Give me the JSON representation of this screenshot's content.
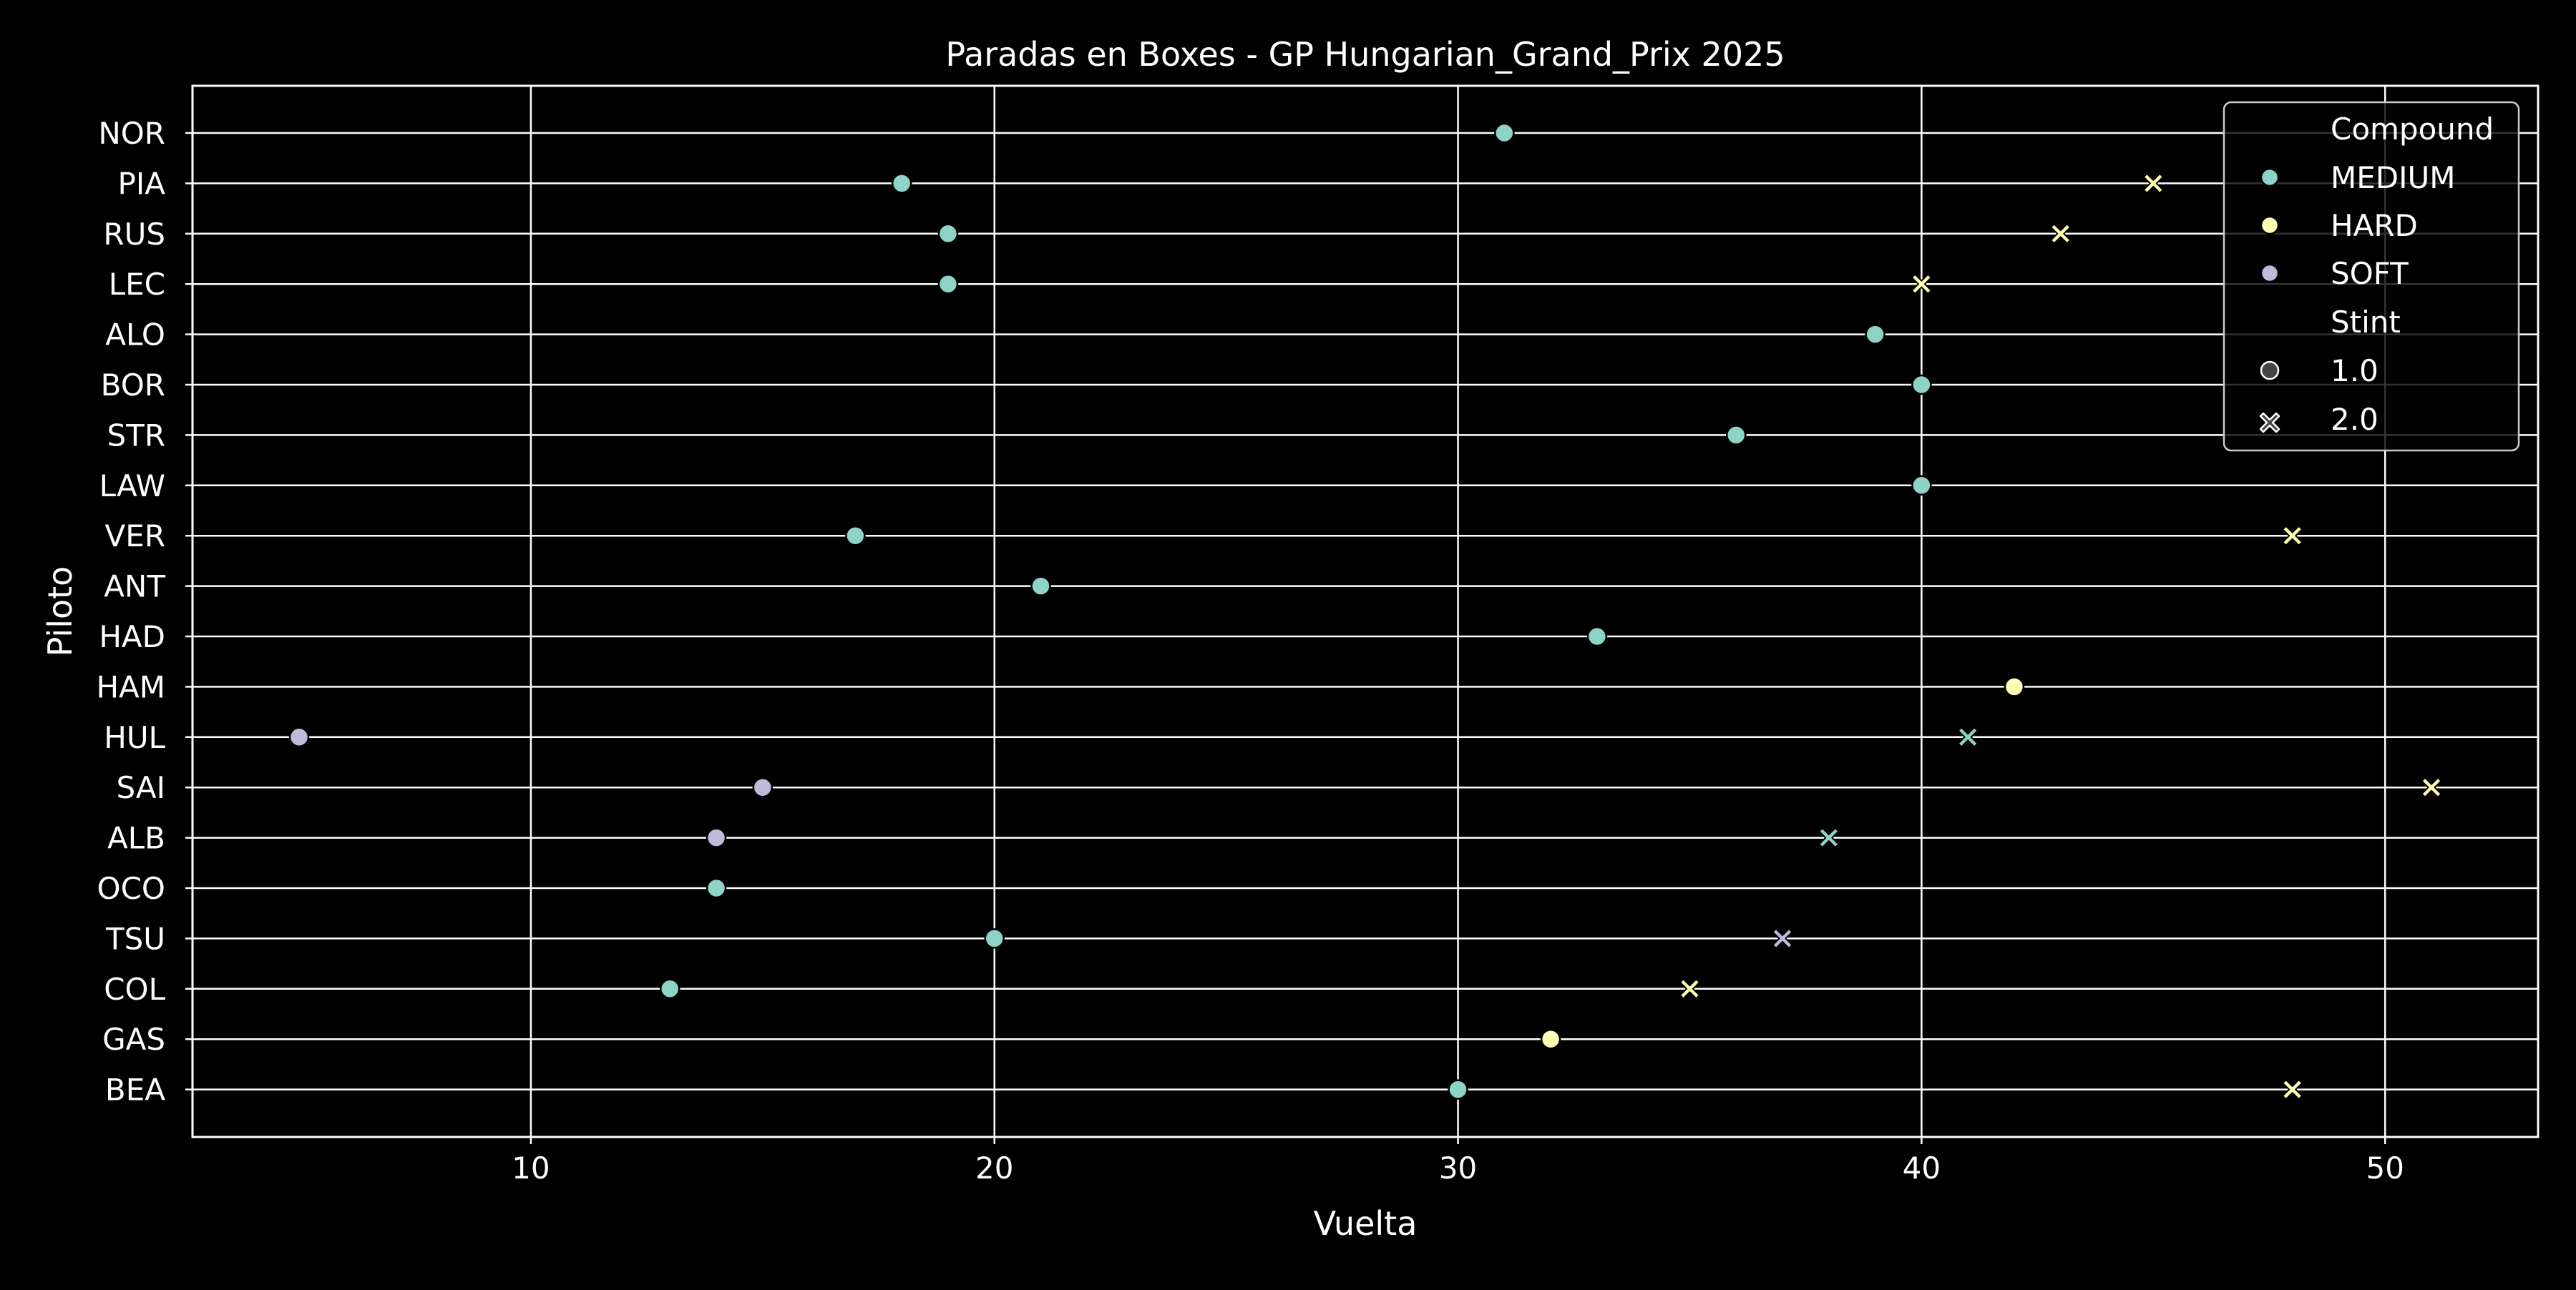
{
  "chart_data": {
    "type": "scatter",
    "title": "Paradas en Boxes - GP Hungarian_Grand_Prix 2025",
    "xlabel": "Vuelta",
    "ylabel": "Piloto",
    "xlim": [
      2.7,
      53.3
    ],
    "xticks": [
      10,
      20,
      30,
      40,
      50
    ],
    "xtick_labels": [
      "10",
      "20",
      "30",
      "40",
      "50"
    ],
    "grid": true,
    "drivers": [
      "NOR",
      "PIA",
      "RUS",
      "LEC",
      "ALO",
      "BOR",
      "STR",
      "LAW",
      "VER",
      "ANT",
      "HAD",
      "HAM",
      "HUL",
      "SAI",
      "ALB",
      "OCO",
      "TSU",
      "COL",
      "GAS",
      "BEA"
    ],
    "compound_colors": {
      "MEDIUM": "#8dd3c7",
      "HARD": "#ffffb3",
      "SOFT": "#bebada"
    },
    "points": [
      {
        "driver": "NOR",
        "lap": 31,
        "compound": "MEDIUM",
        "stint": 1.0
      },
      {
        "driver": "PIA",
        "lap": 18,
        "compound": "MEDIUM",
        "stint": 1.0
      },
      {
        "driver": "PIA",
        "lap": 45,
        "compound": "HARD",
        "stint": 2.0
      },
      {
        "driver": "RUS",
        "lap": 19,
        "compound": "MEDIUM",
        "stint": 1.0
      },
      {
        "driver": "RUS",
        "lap": 43,
        "compound": "HARD",
        "stint": 2.0
      },
      {
        "driver": "LEC",
        "lap": 19,
        "compound": "MEDIUM",
        "stint": 1.0
      },
      {
        "driver": "LEC",
        "lap": 40,
        "compound": "HARD",
        "stint": 2.0
      },
      {
        "driver": "ALO",
        "lap": 39,
        "compound": "MEDIUM",
        "stint": 1.0
      },
      {
        "driver": "BOR",
        "lap": 40,
        "compound": "MEDIUM",
        "stint": 1.0
      },
      {
        "driver": "STR",
        "lap": 36,
        "compound": "MEDIUM",
        "stint": 1.0
      },
      {
        "driver": "LAW",
        "lap": 40,
        "compound": "MEDIUM",
        "stint": 1.0
      },
      {
        "driver": "VER",
        "lap": 17,
        "compound": "MEDIUM",
        "stint": 1.0
      },
      {
        "driver": "VER",
        "lap": 48,
        "compound": "HARD",
        "stint": 2.0
      },
      {
        "driver": "ANT",
        "lap": 21,
        "compound": "MEDIUM",
        "stint": 1.0
      },
      {
        "driver": "HAD",
        "lap": 33,
        "compound": "MEDIUM",
        "stint": 1.0
      },
      {
        "driver": "HAM",
        "lap": 42,
        "compound": "HARD",
        "stint": 1.0
      },
      {
        "driver": "HUL",
        "lap": 5,
        "compound": "SOFT",
        "stint": 1.0
      },
      {
        "driver": "HUL",
        "lap": 41,
        "compound": "MEDIUM",
        "stint": 2.0
      },
      {
        "driver": "SAI",
        "lap": 15,
        "compound": "SOFT",
        "stint": 1.0
      },
      {
        "driver": "SAI",
        "lap": 51,
        "compound": "HARD",
        "stint": 2.0
      },
      {
        "driver": "ALB",
        "lap": 14,
        "compound": "SOFT",
        "stint": 1.0
      },
      {
        "driver": "ALB",
        "lap": 38,
        "compound": "MEDIUM",
        "stint": 2.0
      },
      {
        "driver": "OCO",
        "lap": 14,
        "compound": "MEDIUM",
        "stint": 1.0
      },
      {
        "driver": "TSU",
        "lap": 20,
        "compound": "MEDIUM",
        "stint": 1.0
      },
      {
        "driver": "TSU",
        "lap": 37,
        "compound": "SOFT",
        "stint": 2.0
      },
      {
        "driver": "COL",
        "lap": 13,
        "compound": "MEDIUM",
        "stint": 1.0
      },
      {
        "driver": "COL",
        "lap": 35,
        "compound": "HARD",
        "stint": 2.0
      },
      {
        "driver": "GAS",
        "lap": 32,
        "compound": "HARD",
        "stint": 1.0
      },
      {
        "driver": "BEA",
        "lap": 30,
        "compound": "MEDIUM",
        "stint": 1.0
      },
      {
        "driver": "BEA",
        "lap": 48,
        "compound": "HARD",
        "stint": 2.0
      }
    ],
    "legend": {
      "placement": "top-right",
      "hue_title": "Compound",
      "hue_entries": [
        "MEDIUM",
        "HARD",
        "SOFT"
      ],
      "style_title": "Stint",
      "style_entries": [
        "1.0",
        "2.0"
      ]
    }
  }
}
